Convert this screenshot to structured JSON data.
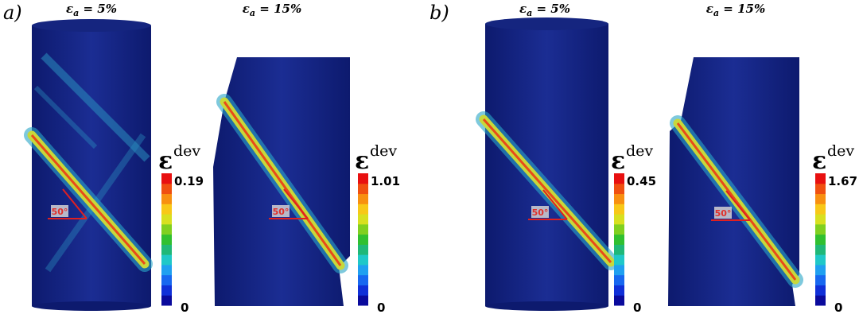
{
  "panels": [
    {
      "label": "a)",
      "specimens": [
        {
          "title": {
            "symbol": "ε",
            "subscript": "a",
            "text": " = 5%"
          },
          "angle": "50°",
          "colorbar": {
            "symbol": "ε",
            "superscript": "dev",
            "max": 0.19,
            "min": 0
          }
        },
        {
          "title": {
            "symbol": "ε",
            "subscript": "a",
            "text": " = 15%"
          },
          "angle": "50°",
          "colorbar": {
            "symbol": "ε",
            "superscript": "dev",
            "max": 1.01,
            "min": 0
          }
        }
      ]
    },
    {
      "label": "b)",
      "specimens": [
        {
          "title": {
            "symbol": "ε",
            "subscript": "a",
            "text": " = 5%"
          },
          "angle": "50°",
          "colorbar": {
            "symbol": "ε",
            "superscript": "dev",
            "max": 0.45,
            "min": 0
          }
        },
        {
          "title": {
            "symbol": "ε",
            "subscript": "a",
            "text": " = 15%"
          },
          "angle": "50°",
          "colorbar": {
            "symbol": "ε",
            "superscript": "dev",
            "max": 1.67,
            "min": 0
          }
        }
      ]
    }
  ]
}
